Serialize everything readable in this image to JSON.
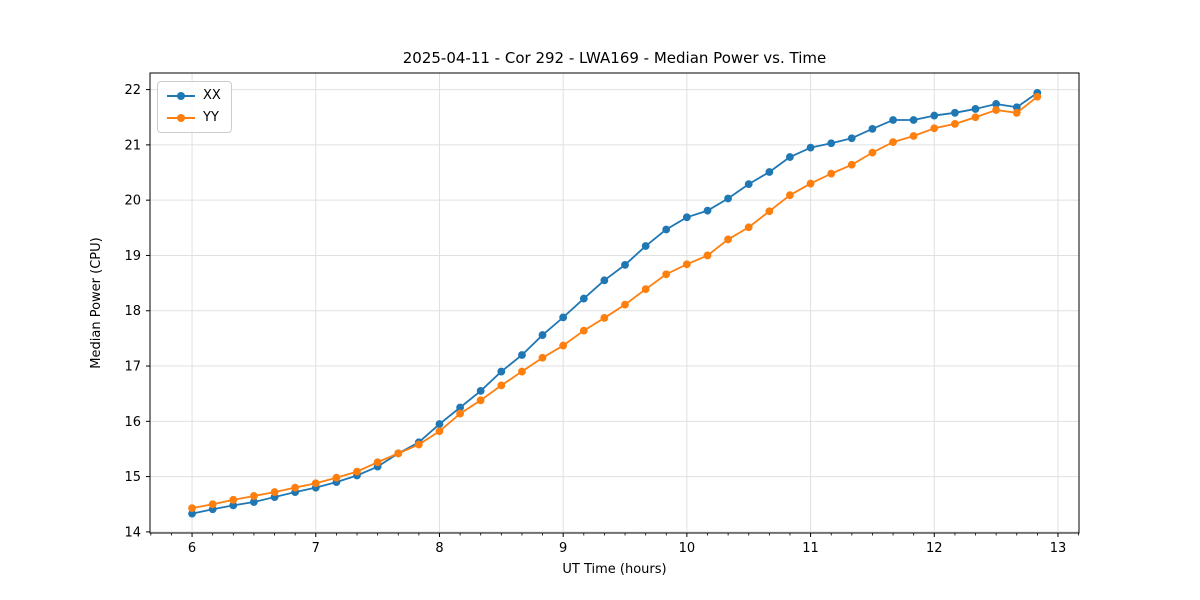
{
  "chart_data": {
    "type": "line",
    "title": "2025-04-11 - Cor 292 - LWA169 - Median Power vs. Time",
    "xlabel": "UT Time (hours)",
    "ylabel": "Median Power (CPU)",
    "xlim": [
      5.66,
      13.17
    ],
    "ylim": [
      13.98,
      22.3
    ],
    "xticks": [
      6,
      7,
      8,
      9,
      10,
      11,
      12,
      13
    ],
    "yticks": [
      14,
      15,
      16,
      17,
      18,
      19,
      20,
      21,
      22
    ],
    "x_minor_tick_step": 0.16667,
    "grid": true,
    "legend_position": "upper left",
    "x": [
      6.0,
      6.167,
      6.333,
      6.5,
      6.667,
      6.833,
      7.0,
      7.167,
      7.333,
      7.5,
      7.667,
      7.833,
      8.0,
      8.167,
      8.333,
      8.5,
      8.667,
      8.833,
      9.0,
      9.167,
      9.333,
      9.5,
      9.667,
      9.833,
      10.0,
      10.167,
      10.333,
      10.5,
      10.667,
      10.833,
      11.0,
      11.167,
      11.333,
      11.5,
      11.667,
      11.833,
      12.0,
      12.167,
      12.333,
      12.5,
      12.667,
      12.833
    ],
    "series": [
      {
        "name": "XX",
        "color": "#1f77b4",
        "values": [
          14.33,
          14.41,
          14.48,
          14.54,
          14.63,
          14.72,
          14.8,
          14.9,
          15.02,
          15.18,
          15.42,
          15.62,
          15.95,
          16.25,
          16.55,
          16.9,
          17.2,
          17.56,
          17.88,
          18.22,
          18.55,
          18.83,
          19.17,
          19.47,
          19.69,
          19.81,
          20.03,
          20.29,
          20.51,
          20.78,
          20.95,
          21.03,
          21.12,
          21.29,
          21.45,
          21.45,
          21.53,
          21.58,
          21.65,
          21.74,
          21.68,
          21.94
        ]
      },
      {
        "name": "YY",
        "color": "#ff7f0e",
        "values": [
          14.43,
          14.5,
          14.58,
          14.65,
          14.72,
          14.8,
          14.88,
          14.98,
          15.09,
          15.26,
          15.42,
          15.58,
          15.82,
          16.14,
          16.38,
          16.65,
          16.9,
          17.15,
          17.37,
          17.64,
          17.87,
          18.11,
          18.39,
          18.66,
          18.84,
          19.0,
          19.29,
          19.51,
          19.8,
          20.09,
          20.3,
          20.48,
          20.64,
          20.86,
          21.05,
          21.16,
          21.3,
          21.38,
          21.5,
          21.63,
          21.58,
          21.87
        ]
      }
    ]
  },
  "style": {
    "grid_color": "#e0e0e0",
    "spine_color": "#000000",
    "tick_color": "#000000",
    "tick_label_color": "#000000",
    "background": "#ffffff"
  }
}
